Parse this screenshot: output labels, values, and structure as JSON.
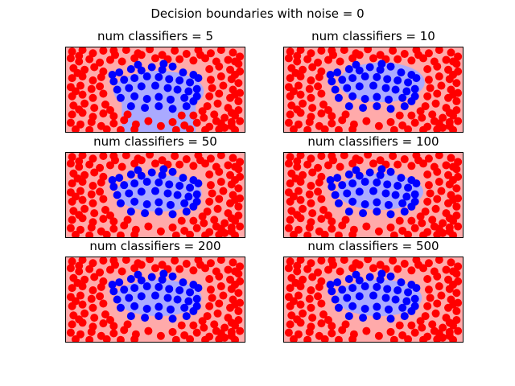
{
  "figure": {
    "suptitle": "Decision boundaries with noise = 0"
  },
  "colors": {
    "background_region": "#ffaaaa",
    "inner_region": "#aaaaff",
    "outer_points": "#ff0000",
    "inner_points": "#0000ff",
    "frame": "#000000"
  },
  "chart_data": [
    {
      "type": "scatter",
      "title": "num classifiers = 5",
      "xlim": [
        -1.3,
        1.3
      ],
      "ylim": [
        -1.3,
        1.3
      ],
      "region": {
        "cx": 0.05,
        "cy": -0.05,
        "rx": 0.65,
        "ry": 0.62,
        "extend_bottom": true
      },
      "legend": "none"
    },
    {
      "type": "scatter",
      "title": "num classifiers = 10",
      "xlim": [
        -1.3,
        1.3
      ],
      "ylim": [
        -1.3,
        1.3
      ],
      "region": {
        "cx": 0.12,
        "cy": 0.22,
        "rx": 0.62,
        "ry": 0.6,
        "extend_bottom": false
      },
      "legend": "none"
    },
    {
      "type": "scatter",
      "title": "num classifiers = 50",
      "xlim": [
        -1.3,
        1.3
      ],
      "ylim": [
        -1.3,
        1.3
      ],
      "region": {
        "cx": 0.05,
        "cy": 0.05,
        "rx": 0.62,
        "ry": 0.55,
        "extend_bottom": false
      },
      "legend": "none"
    },
    {
      "type": "scatter",
      "title": "num classifiers = 100",
      "xlim": [
        -1.3,
        1.3
      ],
      "ylim": [
        -1.3,
        1.3
      ],
      "region": {
        "cx": 0.1,
        "cy": 0.1,
        "rx": 0.62,
        "ry": 0.55,
        "extend_bottom": false
      },
      "legend": "none"
    },
    {
      "type": "scatter",
      "title": "num classifiers = 200",
      "xlim": [
        -1.3,
        1.3
      ],
      "ylim": [
        -1.3,
        1.3
      ],
      "region": {
        "cx": 0.05,
        "cy": 0.05,
        "rx": 0.62,
        "ry": 0.55,
        "extend_bottom": false
      },
      "legend": "none"
    },
    {
      "type": "scatter",
      "title": "num classifiers = 500",
      "xlim": [
        -1.3,
        1.3
      ],
      "ylim": [
        -1.3,
        1.3
      ],
      "region": {
        "cx": 0.08,
        "cy": 0.05,
        "rx": 0.62,
        "ry": 0.55,
        "extend_bottom": false
      },
      "legend": "none"
    }
  ],
  "dataset": {
    "inner_points": [
      [
        -0.52,
        0.52
      ],
      [
        -0.35,
        0.62
      ],
      [
        -0.2,
        0.58
      ],
      [
        -0.05,
        0.68
      ],
      [
        0.1,
        0.6
      ],
      [
        0.25,
        0.7
      ],
      [
        0.4,
        0.52
      ],
      [
        0.55,
        0.45
      ],
      [
        -0.6,
        0.25
      ],
      [
        -0.45,
        0.3
      ],
      [
        -0.3,
        0.35
      ],
      [
        -0.12,
        0.4
      ],
      [
        0.05,
        0.38
      ],
      [
        0.2,
        0.32
      ],
      [
        0.35,
        0.28
      ],
      [
        0.5,
        0.22
      ],
      [
        -0.55,
        0.0
      ],
      [
        -0.38,
        0.05
      ],
      [
        -0.2,
        0.1
      ],
      [
        0.0,
        0.12
      ],
      [
        0.18,
        0.05
      ],
      [
        0.32,
        0.0
      ],
      [
        0.48,
        -0.05
      ],
      [
        0.6,
        0.02
      ],
      [
        -0.5,
        -0.25
      ],
      [
        -0.3,
        -0.2
      ],
      [
        -0.12,
        -0.28
      ],
      [
        0.05,
        -0.22
      ],
      [
        0.22,
        -0.3
      ],
      [
        0.42,
        -0.25
      ],
      [
        0.55,
        -0.35
      ],
      [
        -0.35,
        -0.5
      ],
      [
        -0.15,
        -0.55
      ],
      [
        0.05,
        -0.5
      ],
      [
        0.25,
        -0.58
      ],
      [
        0.45,
        -0.5
      ],
      [
        0.6,
        -0.2
      ],
      [
        -0.62,
        0.45
      ],
      [
        0.62,
        0.35
      ],
      [
        -0.25,
        0.75
      ],
      [
        0.12,
        0.78
      ]
    ],
    "outer_points": [
      [
        -1.2,
        1.15
      ],
      [
        -1.05,
        1.2
      ],
      [
        -0.9,
        1.1
      ],
      [
        -0.75,
        1.18
      ],
      [
        -0.58,
        1.05
      ],
      [
        -0.42,
        1.2
      ],
      [
        -0.25,
        1.1
      ],
      [
        -0.08,
        1.22
      ],
      [
        0.1,
        1.05
      ],
      [
        0.28,
        1.18
      ],
      [
        0.45,
        1.08
      ],
      [
        0.62,
        1.2
      ],
      [
        0.8,
        1.1
      ],
      [
        0.95,
        1.2
      ],
      [
        1.12,
        1.12
      ],
      [
        1.22,
        1.0
      ],
      [
        -1.22,
        0.95
      ],
      [
        -1.1,
        0.85
      ],
      [
        -0.95,
        0.92
      ],
      [
        -0.8,
        0.82
      ],
      [
        -0.65,
        0.9
      ],
      [
        -0.48,
        0.85
      ],
      [
        -0.3,
        0.95
      ],
      [
        0.35,
        0.92
      ],
      [
        0.55,
        0.88
      ],
      [
        0.72,
        0.95
      ],
      [
        0.88,
        0.85
      ],
      [
        1.05,
        0.9
      ],
      [
        1.2,
        0.78
      ],
      [
        -1.18,
        0.65
      ],
      [
        -1.02,
        0.6
      ],
      [
        -0.88,
        0.68
      ],
      [
        -0.75,
        0.55
      ],
      [
        0.78,
        0.62
      ],
      [
        0.92,
        0.7
      ],
      [
        1.08,
        0.6
      ],
      [
        1.22,
        0.55
      ],
      [
        -1.2,
        0.35
      ],
      [
        -1.05,
        0.4
      ],
      [
        -0.9,
        0.28
      ],
      [
        -0.78,
        0.38
      ],
      [
        0.8,
        0.3
      ],
      [
        0.95,
        0.4
      ],
      [
        1.1,
        0.32
      ],
      [
        1.2,
        0.2
      ],
      [
        -1.22,
        0.08
      ],
      [
        -1.08,
        0.12
      ],
      [
        -0.92,
        0.02
      ],
      [
        -0.8,
        0.1
      ],
      [
        0.82,
        0.05
      ],
      [
        0.98,
        0.12
      ],
      [
        1.12,
        0.0
      ],
      [
        1.22,
        -0.1
      ],
      [
        -1.2,
        -0.2
      ],
      [
        -1.05,
        -0.15
      ],
      [
        -0.9,
        -0.25
      ],
      [
        -0.75,
        -0.12
      ],
      [
        0.78,
        -0.2
      ],
      [
        0.92,
        -0.12
      ],
      [
        1.08,
        -0.25
      ],
      [
        1.2,
        -0.35
      ],
      [
        -1.18,
        -0.48
      ],
      [
        -1.02,
        -0.42
      ],
      [
        -0.88,
        -0.55
      ],
      [
        -0.72,
        -0.45
      ],
      [
        0.75,
        -0.5
      ],
      [
        0.9,
        -0.42
      ],
      [
        1.05,
        -0.55
      ],
      [
        1.2,
        -0.62
      ],
      [
        -1.2,
        -0.75
      ],
      [
        -1.05,
        -0.7
      ],
      [
        -0.9,
        -0.82
      ],
      [
        -0.75,
        -0.72
      ],
      [
        -0.6,
        -0.8
      ],
      [
        0.55,
        -0.78
      ],
      [
        0.7,
        -0.85
      ],
      [
        0.85,
        -0.75
      ],
      [
        1.0,
        -0.85
      ],
      [
        1.15,
        -0.78
      ],
      [
        -1.22,
        -1.0
      ],
      [
        -1.08,
        -1.05
      ],
      [
        -0.92,
        -0.98
      ],
      [
        -0.78,
        -1.1
      ],
      [
        -0.6,
        -1.02
      ],
      [
        -0.45,
        -0.92
      ],
      [
        -0.28,
        -1.05
      ],
      [
        -0.1,
        -0.95
      ],
      [
        0.08,
        -1.1
      ],
      [
        0.25,
        -0.98
      ],
      [
        0.42,
        -1.08
      ],
      [
        0.6,
        -1.0
      ],
      [
        0.78,
        -1.12
      ],
      [
        0.95,
        -1.02
      ],
      [
        1.1,
        -1.1
      ],
      [
        1.22,
        -0.95
      ],
      [
        -1.15,
        -1.2
      ],
      [
        -0.95,
        -1.22
      ],
      [
        -0.7,
        -1.2
      ],
      [
        -0.5,
        -1.22
      ],
      [
        -0.3,
        -1.2
      ],
      [
        0.3,
        -1.22
      ],
      [
        0.5,
        -1.2
      ],
      [
        0.72,
        -1.22
      ],
      [
        0.92,
        -1.2
      ],
      [
        1.15,
        -1.22
      ],
      [
        -0.65,
        -0.62
      ],
      [
        0.68,
        -0.65
      ],
      [
        -0.4,
        -0.75
      ],
      [
        0.38,
        -0.78
      ],
      [
        1.1,
        -0.98
      ],
      [
        1.0,
        -1.15
      ],
      [
        0.88,
        -0.95
      ],
      [
        -1.1,
        1.02
      ],
      [
        -0.6,
        1.18
      ],
      [
        0.0,
        0.95
      ],
      [
        0.65,
        1.05
      ],
      [
        1.15,
        0.85
      ],
      [
        -1.12,
        0.5
      ],
      [
        1.15,
        0.45
      ],
      [
        -1.15,
        -0.05
      ],
      [
        1.15,
        -0.15
      ],
      [
        -1.1,
        -0.6
      ],
      [
        1.1,
        -0.7
      ],
      [
        -0.2,
        1.05
      ],
      [
        0.18,
        0.92
      ]
    ]
  }
}
